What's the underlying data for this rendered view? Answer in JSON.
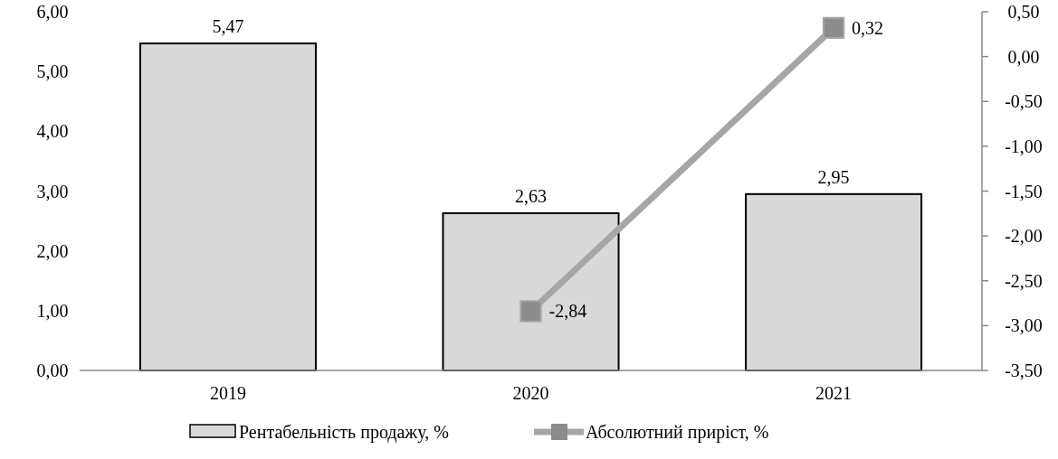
{
  "chart_data": {
    "type": "bar",
    "categories": [
      "2019",
      "2020",
      "2021"
    ],
    "series": [
      {
        "name": "Рентабельність продажу, %",
        "color": "#d9d9d9",
        "values": [
          5.47,
          2.63,
          2.95
        ],
        "value_labels": [
          "5,47",
          "2,63",
          "2,95"
        ]
      },
      {
        "name": "Абсолютний приріст, %",
        "type": "line",
        "axis": "y2",
        "color": "#a6a6a6",
        "marker": "square",
        "values": [
          null,
          -2.84,
          0.32
        ],
        "value_labels": [
          null,
          "-2,84",
          "0,32"
        ]
      }
    ],
    "ylim": [
      0,
      6
    ],
    "yticks": [
      {
        "value": 0,
        "label": "0,00"
      },
      {
        "value": 1,
        "label": "1,00"
      },
      {
        "value": 2,
        "label": "2,00"
      },
      {
        "value": 3,
        "label": "3,00"
      },
      {
        "value": 4,
        "label": "4,00"
      },
      {
        "value": 5,
        "label": "5,00"
      },
      {
        "value": 6,
        "label": "6,00"
      }
    ],
    "y2lim": [
      -3.5,
      0.5
    ],
    "y2ticks": [
      {
        "value": -3.5,
        "label": "-3,50"
      },
      {
        "value": -3,
        "label": "-3,00"
      },
      {
        "value": -2.5,
        "label": "-2,50"
      },
      {
        "value": -2,
        "label": "-2,00"
      },
      {
        "value": -1.5,
        "label": "-1,50"
      },
      {
        "value": -1,
        "label": "-1,00"
      },
      {
        "value": -0.5,
        "label": "-0,50"
      },
      {
        "value": 0,
        "label": "0,00"
      },
      {
        "value": 0.5,
        "label": "0,50"
      }
    ],
    "grid": false,
    "legend": "bottom"
  }
}
